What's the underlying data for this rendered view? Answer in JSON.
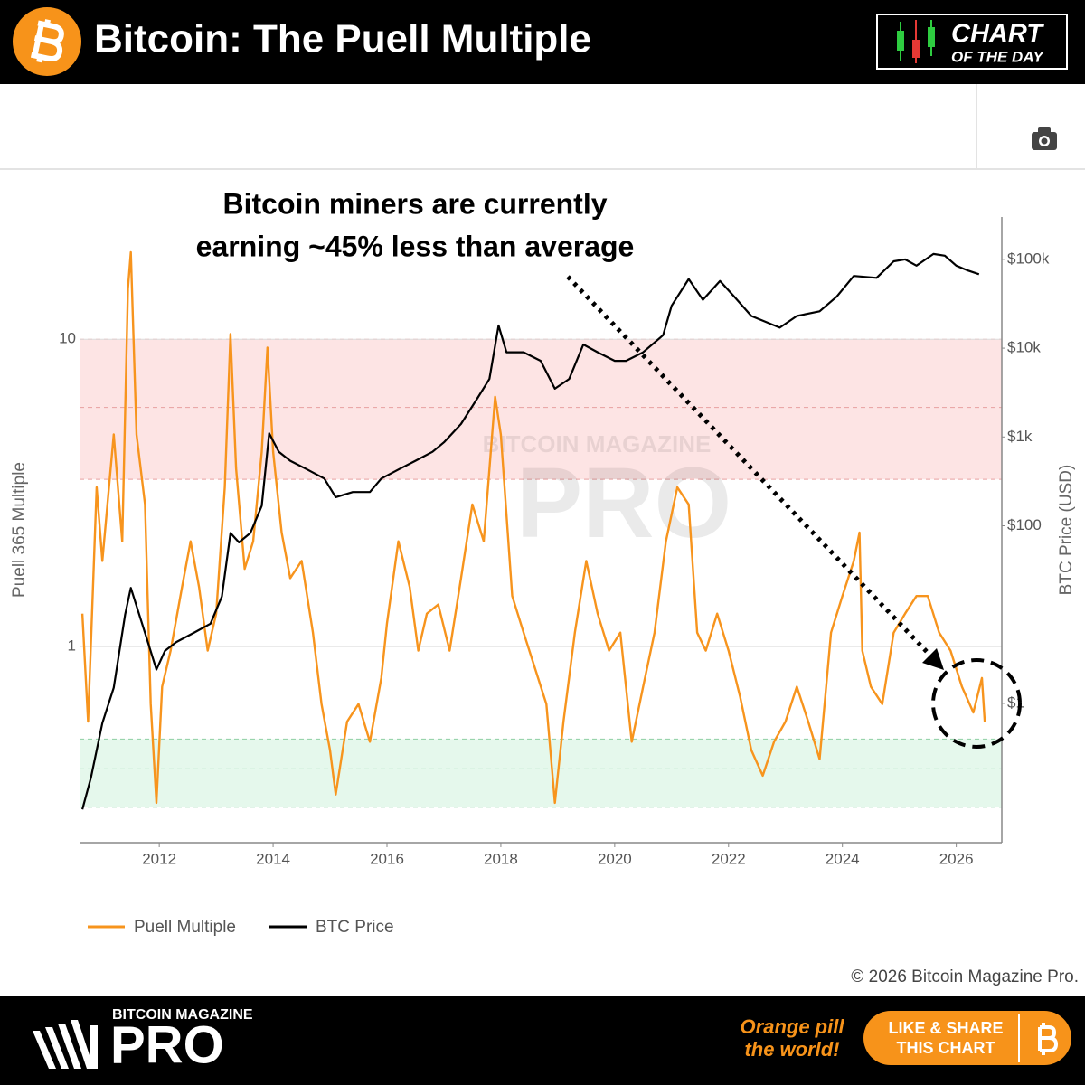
{
  "header": {
    "title": "Bitcoin: The Puell Multiple",
    "badge": [
      "CHART",
      "OF THE DAY"
    ]
  },
  "chart_data": {
    "type": "line",
    "annotation": [
      "Bitcoin miners are currently",
      "earning ~45% less than average"
    ],
    "watermark": [
      "BITCOIN MAGAZINE",
      "PRO"
    ],
    "y_label": "Puell 365 Multiple",
    "y2_label": "BTC Price (USD)",
    "xlim": [
      2010.6,
      2026.8
    ],
    "xticks": [
      2012,
      2014,
      2016,
      2018,
      2020,
      2022,
      2024,
      2026
    ],
    "ylim": [
      0.23,
      25
    ],
    "yticks": [
      1,
      10
    ],
    "y2lim": [
      0.027,
      300000
    ],
    "y2ticks": [
      {
        "value": 1,
        "label": "$1"
      },
      {
        "value": 100,
        "label": "$100"
      },
      {
        "value": 1000,
        "label": "$1k"
      },
      {
        "value": 10000,
        "label": "$10k"
      },
      {
        "value": 100000,
        "label": "$100k"
      }
    ],
    "log_scale": true,
    "grid": true,
    "bands": [
      {
        "range": [
          3.5,
          10
        ],
        "line": 6,
        "color": "#fde4e4",
        "edge": "#e8a0a0"
      },
      {
        "range": [
          0.3,
          0.5
        ],
        "line": 0.4,
        "color": "#e5f8ec",
        "edge": "#8ecfa3"
      }
    ],
    "series": [
      {
        "name": "Puell Multiple",
        "color": "#f7941d",
        "x": [
          2010.65,
          2010.75,
          2010.9,
          2011.0,
          2011.2,
          2011.35,
          2011.45,
          2011.5,
          2011.6,
          2011.75,
          2011.85,
          2011.95,
          2012.05,
          2012.2,
          2012.4,
          2012.55,
          2012.7,
          2012.85,
          2013.0,
          2013.15,
          2013.25,
          2013.35,
          2013.5,
          2013.65,
          2013.8,
          2013.9,
          2014.0,
          2014.15,
          2014.3,
          2014.5,
          2014.7,
          2014.85,
          2015.0,
          2015.1,
          2015.3,
          2015.5,
          2015.7,
          2015.9,
          2016.0,
          2016.2,
          2016.4,
          2016.55,
          2016.7,
          2016.9,
          2017.1,
          2017.3,
          2017.5,
          2017.7,
          2017.9,
          2018.0,
          2018.2,
          2018.4,
          2018.6,
          2018.8,
          2018.95,
          2019.1,
          2019.3,
          2019.5,
          2019.7,
          2019.9,
          2020.1,
          2020.3,
          2020.5,
          2020.7,
          2020.9,
          2021.1,
          2021.3,
          2021.45,
          2021.6,
          2021.8,
          2022.0,
          2022.2,
          2022.4,
          2022.6,
          2022.8,
          2023.0,
          2023.2,
          2023.4,
          2023.6,
          2023.8,
          2024.0,
          2024.2,
          2024.3,
          2024.35,
          2024.5,
          2024.7,
          2024.9,
          2025.1,
          2025.3,
          2025.5,
          2025.7,
          2025.9,
          2026.1,
          2026.3,
          2026.45,
          2026.5
        ],
        "values": [
          1.28,
          0.57,
          3.3,
          1.9,
          4.9,
          2.2,
          14.6,
          19.2,
          4.9,
          2.9,
          0.65,
          0.31,
          0.74,
          0.97,
          1.56,
          2.2,
          1.56,
          0.97,
          1.28,
          3.3,
          10.4,
          3.8,
          1.79,
          2.2,
          4.3,
          9.4,
          4.3,
          2.35,
          1.67,
          1.9,
          1.11,
          0.65,
          0.46,
          0.33,
          0.57,
          0.65,
          0.49,
          0.79,
          1.19,
          2.2,
          1.56,
          0.97,
          1.28,
          1.37,
          0.97,
          1.67,
          2.9,
          2.2,
          6.5,
          4.9,
          1.46,
          1.11,
          0.85,
          0.65,
          0.31,
          0.57,
          1.11,
          1.9,
          1.28,
          0.97,
          1.11,
          0.49,
          0.74,
          1.11,
          2.2,
          3.3,
          2.9,
          1.11,
          0.97,
          1.28,
          0.97,
          0.69,
          0.46,
          0.38,
          0.49,
          0.57,
          0.74,
          0.57,
          0.43,
          1.11,
          1.46,
          1.9,
          2.35,
          0.97,
          0.74,
          0.65,
          1.11,
          1.28,
          1.46,
          1.46,
          1.11,
          0.97,
          0.74,
          0.61,
          0.79,
          0.57
        ]
      },
      {
        "name": "BTC Price",
        "color": "#000000",
        "axis": "y2",
        "x": [
          2010.65,
          2010.8,
          2011.0,
          2011.2,
          2011.4,
          2011.5,
          2011.75,
          2011.95,
          2012.1,
          2012.3,
          2012.6,
          2012.9,
          2013.1,
          2013.25,
          2013.4,
          2013.6,
          2013.8,
          2013.93,
          2014.1,
          2014.3,
          2014.6,
          2014.9,
          2015.1,
          2015.4,
          2015.7,
          2015.9,
          2016.2,
          2016.5,
          2016.8,
          2017.0,
          2017.3,
          2017.6,
          2017.8,
          2017.96,
          2018.1,
          2018.4,
          2018.7,
          2018.95,
          2019.2,
          2019.45,
          2019.7,
          2020.0,
          2020.2,
          2020.5,
          2020.85,
          2021.0,
          2021.3,
          2021.55,
          2021.85,
          2022.1,
          2022.4,
          2022.9,
          2023.2,
          2023.6,
          2023.9,
          2024.2,
          2024.6,
          2024.9,
          2025.1,
          2025.3,
          2025.6,
          2025.8,
          2026.0,
          2026.2,
          2026.4
        ],
        "values": [
          0.064,
          0.146,
          0.6,
          1.5,
          10,
          20,
          6.2,
          2.4,
          3.9,
          4.9,
          6.2,
          7.9,
          16,
          83,
          65,
          83,
          168,
          1100,
          680,
          540,
          430,
          340,
          210,
          240,
          240,
          340,
          430,
          540,
          680,
          870,
          1400,
          2800,
          4500,
          18000,
          9000,
          9000,
          7200,
          3500,
          4500,
          11000,
          9000,
          7200,
          7200,
          9000,
          14000,
          30000,
          60000,
          35000,
          57000,
          38000,
          23000,
          17000,
          23000,
          26000,
          38000,
          65000,
          62000,
          95000,
          100000,
          85000,
          115000,
          110000,
          85000,
          75000,
          68000
        ]
      }
    ]
  },
  "copyright": "© 2026 Bitcoin Magazine Pro.",
  "footer": {
    "brand_top": "BITCOIN MAGAZINE",
    "brand": "PRO",
    "slogan": [
      "Orange pill",
      "the world!"
    ],
    "button": [
      "LIKE & SHARE",
      "THIS CHART"
    ]
  }
}
